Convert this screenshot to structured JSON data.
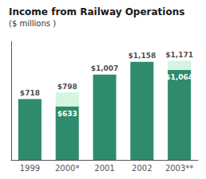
{
  "chart_data": {
    "type": "bar",
    "title": "Income from Railway Operations",
    "subtitle": "($ millions )",
    "categories": [
      "1999",
      "2000*",
      "2001",
      "2002",
      "2003**"
    ],
    "stacked": true,
    "series": [
      {
        "color": "#2e8b6b",
        "values": [
          718,
          633,
          1007,
          1158,
          1064
        ],
        "value_labels": [
          null,
          "$633",
          null,
          null,
          "$1,064"
        ]
      },
      {
        "color": "#d4f5e0",
        "values": [
          0,
          165,
          0,
          0,
          107
        ]
      }
    ],
    "totals": [
      718,
      798,
      1007,
      1158,
      1171
    ],
    "total_labels": [
      "$718",
      "$798",
      "$1,007",
      "$1,158",
      "$1,171"
    ],
    "ylim": [
      0,
      1400
    ],
    "grid": false,
    "tick_labels": "x",
    "data_labels": true
  }
}
